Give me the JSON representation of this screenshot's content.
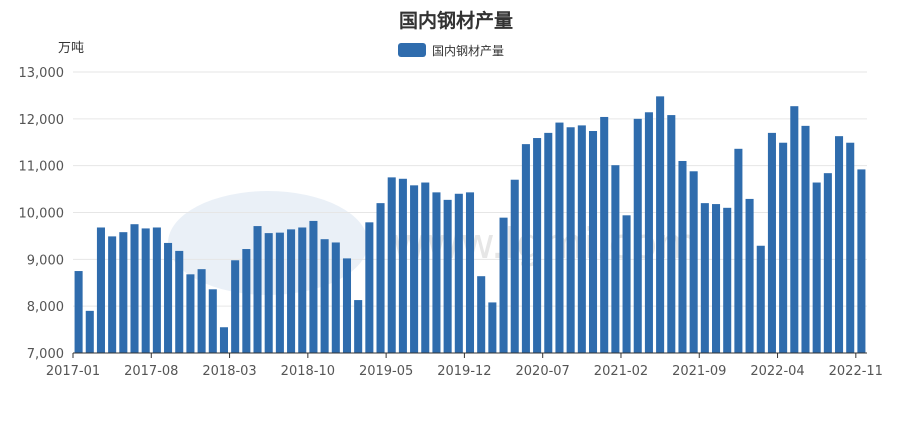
{
  "chart_data": {
    "type": "bar",
    "title": "国内钢材产量",
    "ylabel": "万吨",
    "ylim": [
      7000,
      13000
    ],
    "yticks": [
      "7,000",
      "8,000",
      "9,000",
      "10,000",
      "11,000",
      "12,000",
      "13,000"
    ],
    "xtick_labels": [
      "2017-01",
      "2017-08",
      "2018-03",
      "2018-10",
      "2019-05",
      "2019-12",
      "2020-07",
      "2021-02",
      "2021-09",
      "2022-04",
      "2022-11"
    ],
    "legend_position": "top-center",
    "grid": true,
    "series": [
      {
        "name": "国内钢材产量",
        "color": "#2f6cad",
        "values": [
          8750,
          7900,
          9680,
          9490,
          9580,
          9750,
          9660,
          9680,
          9350,
          9180,
          8680,
          8790,
          8360,
          7550,
          8980,
          9220,
          9710,
          9560,
          9570,
          9640,
          9680,
          9820,
          9430,
          9360,
          9020,
          8130,
          9790,
          10200,
          10750,
          10720,
          10580,
          10640,
          10430,
          10270,
          10400,
          10430,
          8640,
          8080,
          9890,
          10700,
          11460,
          11590,
          11700,
          11920,
          11820,
          11860,
          11740,
          12040,
          11010,
          9940,
          12000,
          12140,
          12480,
          12080,
          11100,
          10880,
          10200,
          10180,
          10100,
          11360,
          10290,
          9290,
          11700,
          11490,
          12270,
          11850,
          10640,
          10840,
          11630,
          11490,
          10920
        ]
      }
    ]
  },
  "watermark_text": "www.lgmi.com"
}
